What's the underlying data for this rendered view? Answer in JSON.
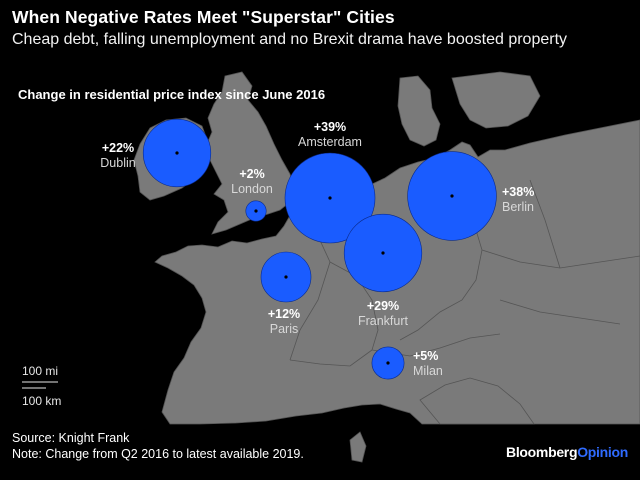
{
  "header": {
    "title": "When Negative Rates Meet \"Superstar\" Cities",
    "subtitle": "Cheap debt, falling unemployment and no Brexit drama have boosted property"
  },
  "map": {
    "label": "Change in residential price index since June 2016",
    "bubble_color": "#1a5cff",
    "land_color": "#7a7a7a",
    "sea_color": "#000000",
    "cities": [
      {
        "name": "Dublin",
        "value_label": "+22%",
        "value": 22
      },
      {
        "name": "London",
        "value_label": "+2%",
        "value": 2
      },
      {
        "name": "Amsterdam",
        "value_label": "+39%",
        "value": 39
      },
      {
        "name": "Berlin",
        "value_label": "+38%",
        "value": 38
      },
      {
        "name": "Frankfurt",
        "value_label": "+29%",
        "value": 29
      },
      {
        "name": "Paris",
        "value_label": "+12%",
        "value": 12
      },
      {
        "name": "Milan",
        "value_label": "+5%",
        "value": 5
      }
    ],
    "scale": {
      "miles": "100 mi",
      "km": "100 km"
    }
  },
  "footer": {
    "source": "Source: Knight Frank",
    "note": "Note: Change from Q2 2016 to latest available 2019.",
    "brand_part1": "Bloomberg",
    "brand_part2": "Opinion"
  }
}
